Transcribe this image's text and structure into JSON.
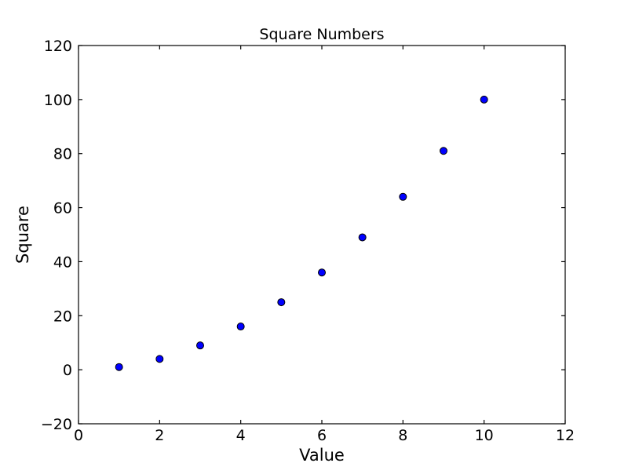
{
  "chart_data": {
    "type": "scatter",
    "title": "Square Numbers",
    "xlabel": "Value",
    "ylabel": "Square",
    "x": [
      1,
      2,
      3,
      4,
      5,
      6,
      7,
      8,
      9,
      10
    ],
    "y": [
      1,
      4,
      9,
      16,
      25,
      36,
      49,
      64,
      81,
      100
    ],
    "xlim": [
      0,
      12
    ],
    "ylim": [
      -20,
      120
    ],
    "xticks": [
      0,
      2,
      4,
      6,
      8,
      10,
      12
    ],
    "yticks": [
      -20,
      0,
      20,
      40,
      60,
      80,
      100,
      120
    ],
    "xtick_labels": [
      "0",
      "2",
      "4",
      "6",
      "8",
      "10",
      "12"
    ],
    "ytick_labels": [
      "−20",
      "0",
      "20",
      "40",
      "60",
      "80",
      "100",
      "120"
    ],
    "grid": false,
    "background_color": "#ffffff",
    "axis_color": "#000000",
    "marker": {
      "shape": "circle",
      "fill_color": "#0000ff",
      "edge_color": "#000000",
      "radius": 4.5
    }
  }
}
